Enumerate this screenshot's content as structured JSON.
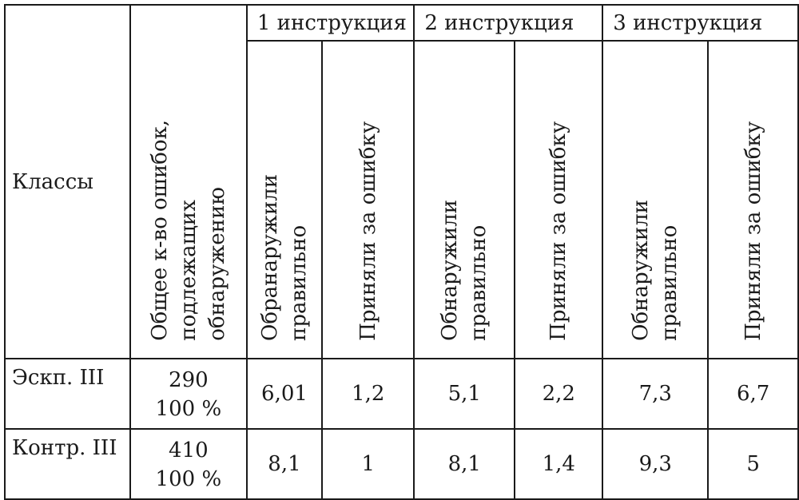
{
  "table": {
    "headers": {
      "classes": "Классы",
      "total_lines": [
        "Общее к-во ошибок,",
        "подлежащих",
        "обнаружению"
      ],
      "groups": [
        "1 инструкция",
        "2 инструкция",
        "3 инструкция"
      ],
      "sub": [
        [
          "Обранаружили",
          "правильно"
        ],
        [
          "Приняли за ошибку"
        ],
        [
          "Обнаружили",
          "правильно"
        ],
        [
          "Приняли за ошибку"
        ],
        [
          "Обнаружили",
          "правильно"
        ],
        [
          "Приняли за ошибку"
        ]
      ]
    },
    "rows": [
      {
        "label": "Эскп. III",
        "total": "290",
        "percent": "100 %",
        "values": [
          "6,01",
          "1,2",
          "5,1",
          "2,2",
          "7,3",
          "6,7"
        ]
      },
      {
        "label": "Контр. III",
        "total": "410",
        "percent": "100 %",
        "values": [
          "8,1",
          "1",
          "8,1",
          "1,4",
          "9,3",
          "5"
        ]
      }
    ]
  }
}
